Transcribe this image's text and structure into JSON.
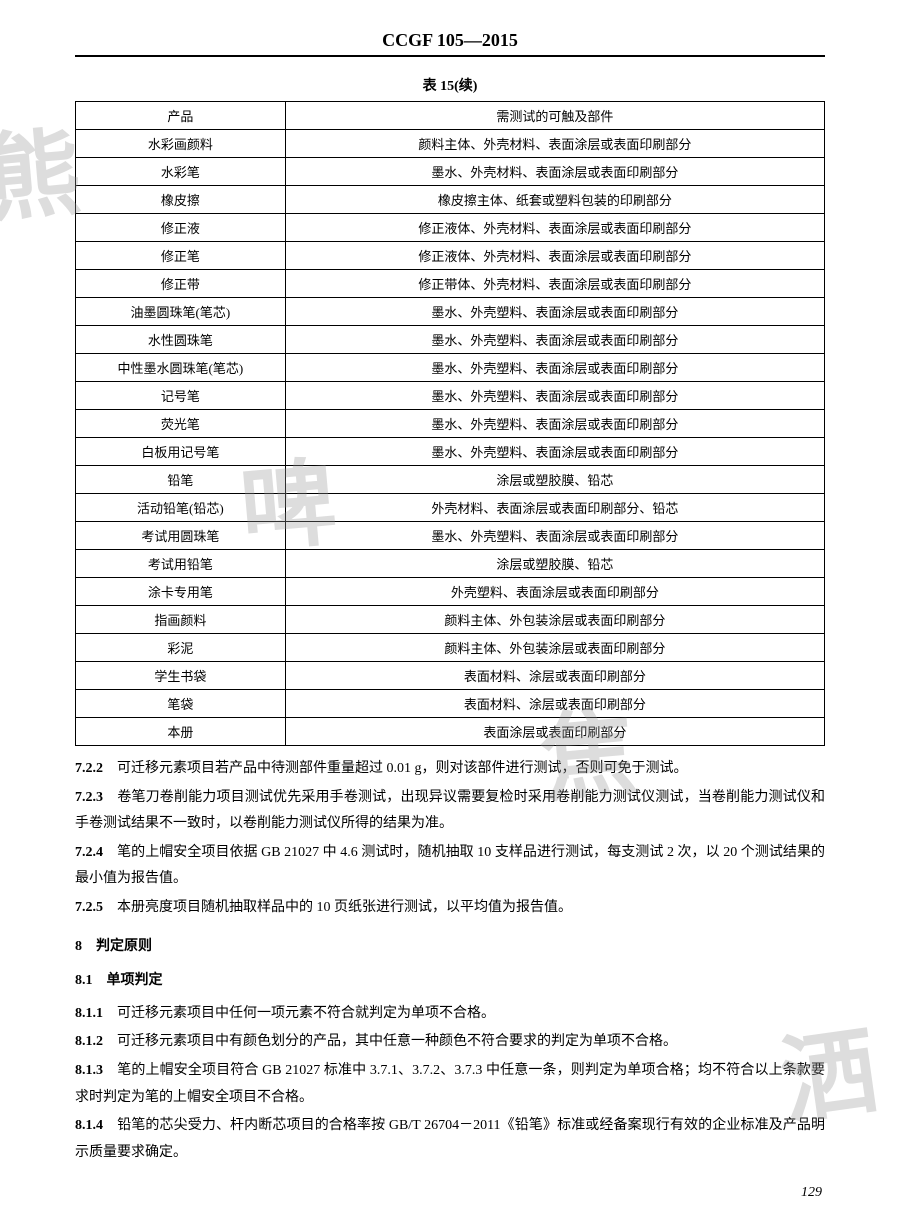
{
  "doc_header": "CCGF 105—2015",
  "table_caption": "表 15(续)",
  "page_number": "129",
  "watermark_chars": [
    "熊",
    "啤",
    "焦",
    "洒"
  ],
  "table": {
    "headers": [
      "产品",
      "需测试的可触及部件"
    ],
    "rows": [
      [
        "水彩画颜料",
        "颜料主体、外壳材料、表面涂层或表面印刷部分"
      ],
      [
        "水彩笔",
        "墨水、外壳材料、表面涂层或表面印刷部分"
      ],
      [
        "橡皮擦",
        "橡皮擦主体、纸套或塑料包装的印刷部分"
      ],
      [
        "修正液",
        "修正液体、外壳材料、表面涂层或表面印刷部分"
      ],
      [
        "修正笔",
        "修正液体、外壳材料、表面涂层或表面印刷部分"
      ],
      [
        "修正带",
        "修正带体、外壳材料、表面涂层或表面印刷部分"
      ],
      [
        "油墨圆珠笔(笔芯)",
        "墨水、外壳塑料、表面涂层或表面印刷部分"
      ],
      [
        "水性圆珠笔",
        "墨水、外壳塑料、表面涂层或表面印刷部分"
      ],
      [
        "中性墨水圆珠笔(笔芯)",
        "墨水、外壳塑料、表面涂层或表面印刷部分"
      ],
      [
        "记号笔",
        "墨水、外壳塑料、表面涂层或表面印刷部分"
      ],
      [
        "荧光笔",
        "墨水、外壳塑料、表面涂层或表面印刷部分"
      ],
      [
        "白板用记号笔",
        "墨水、外壳塑料、表面涂层或表面印刷部分"
      ],
      [
        "铅笔",
        "涂层或塑胶膜、铅芯"
      ],
      [
        "活动铅笔(铅芯)",
        "外壳材料、表面涂层或表面印刷部分、铅芯"
      ],
      [
        "考试用圆珠笔",
        "墨水、外壳塑料、表面涂层或表面印刷部分"
      ],
      [
        "考试用铅笔",
        "涂层或塑胶膜、铅芯"
      ],
      [
        "涂卡专用笔",
        "外壳塑料、表面涂层或表面印刷部分"
      ],
      [
        "指画颜料",
        "颜料主体、外包装涂层或表面印刷部分"
      ],
      [
        "彩泥",
        "颜料主体、外包装涂层或表面印刷部分"
      ],
      [
        "学生书袋",
        "表面材料、涂层或表面印刷部分"
      ],
      [
        "笔袋",
        "表面材料、涂层或表面印刷部分"
      ],
      [
        "本册",
        "表面涂层或表面印刷部分"
      ]
    ]
  },
  "paragraphs": {
    "p722n": "7.2.2",
    "p722": "　可迁移元素项目若产品中待测部件重量超过 0.01 g，则对该部件进行测试，否则可免于测试。",
    "p723n": "7.2.3",
    "p723": "　卷笔刀卷削能力项目测试优先采用手卷测试，出现异议需要复检时采用卷削能力测试仪测试，当卷削能力测试仪和手卷测试结果不一致时，以卷削能力测试仪所得的结果为准。",
    "p724n": "7.2.4",
    "p724": "　笔的上帽安全项目依据 GB 21027 中 4.6 测试时，随机抽取 10 支样品进行测试，每支测试 2 次，以 20 个测试结果的最小值为报告值。",
    "p725n": "7.2.5",
    "p725": "　本册亮度项目随机抽取样品中的 10 页纸张进行测试，以平均值为报告值。",
    "s8": "8　判定原则",
    "s81": "8.1　单项判定",
    "p811n": "8.1.1",
    "p811": "　可迁移元素项目中任何一项元素不符合就判定为单项不合格。",
    "p812n": "8.1.2",
    "p812": "　可迁移元素项目中有颜色划分的产品，其中任意一种颜色不符合要求的判定为单项不合格。",
    "p813n": "8.1.3",
    "p813": "　笔的上帽安全项目符合 GB 21027 标准中 3.7.1、3.7.2、3.7.3 中任意一条，则判定为单项合格；均不符合以上条款要求时判定为笔的上帽安全项目不合格。",
    "p814n": "8.1.4",
    "p814": "　铅笔的芯尖受力、杆内断芯项目的合格率按 GB/T 26704－2011《铅笔》标准或经备案现行有效的企业标准及产品明示质量要求确定。"
  }
}
